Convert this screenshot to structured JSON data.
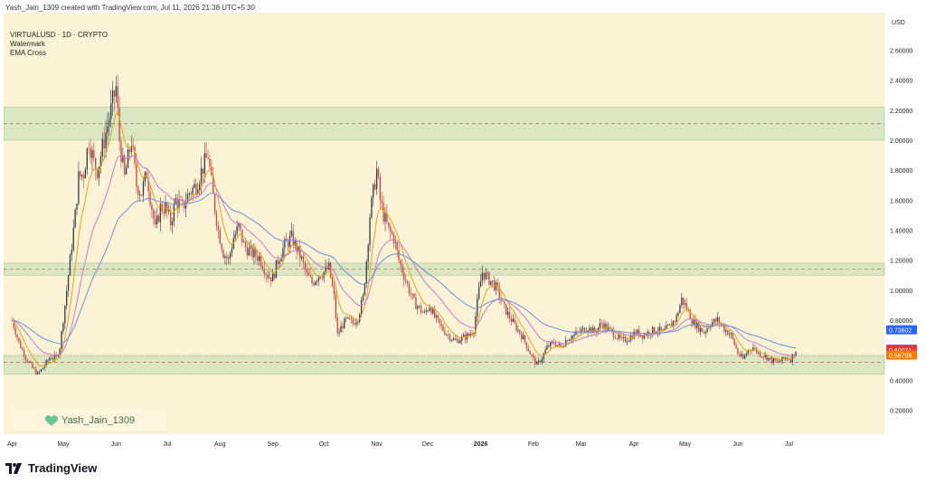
{
  "header": {
    "text": "Yash_Jain_1309 created with TradingView.com, Jul 11, 2026 21:38 UTC+5:30"
  },
  "legend": {
    "symbol": "VIRTUALUSD · 1D · CRYPTO",
    "indicator1": "Watermark",
    "indicator2": "EMA Cross"
  },
  "watermark": {
    "text": "Yash_Jain_1309",
    "icon": "heart-icon",
    "icon_color": "#6cc394"
  },
  "footer": {
    "brand": "TradingView",
    "icon": "tradingview-logo-icon"
  },
  "colors": {
    "background": "#fcf3d7",
    "up_candle": "#2f3a44",
    "down_candle": "#c9433f",
    "ema_fast": "#e6a21e",
    "ema_mid": "#c77bc9",
    "ema_slow": "#6f8fd8",
    "zone_fill": "#d8e6c1",
    "zone_line": "#c15a5a",
    "axis_text": "#222222"
  },
  "chart_data": {
    "type": "candlestick",
    "symbol": "VIRTUALUSD",
    "timeframe": "1D",
    "currency_label": "USD",
    "x_tick_labels": [
      "Apr",
      "May",
      "Jun",
      "Jul",
      "Aug",
      "Sep",
      "Oct",
      "Nov",
      "Dec",
      "2026",
      "Feb",
      "Mar",
      "Apr",
      "May",
      "Jun",
      "Jul"
    ],
    "x_tick_days": [
      0,
      30,
      61,
      91,
      122,
      153,
      183,
      214,
      244,
      275,
      306,
      334,
      365,
      395,
      426,
      456
    ],
    "x_range_days": [
      -5,
      512
    ],
    "y_tick_labels": [
      "0.20000",
      "0.40000",
      "0.60000",
      "0.80000",
      "1.00000",
      "1.20000",
      "1.40000",
      "1.60000",
      "1.80000",
      "2.00000",
      "2.20000",
      "2.40000",
      "2.60000"
    ],
    "y_tick_values": [
      0.2,
      0.4,
      0.6,
      0.8,
      1.0,
      1.2,
      1.4,
      1.6,
      1.8,
      2.0,
      2.2,
      2.4,
      2.6
    ],
    "ylim": [
      0.04,
      2.85
    ],
    "zones": [
      {
        "low": 2.0,
        "high": 2.22,
        "mid": 2.11
      },
      {
        "low": 1.1,
        "high": 1.18,
        "mid": 1.14
      },
      {
        "low": 0.44,
        "high": 0.56,
        "mid": 0.52
      }
    ],
    "last_price_line": 0.57,
    "price_badges": [
      {
        "value": "0.73602",
        "y": 0.736,
        "color": "#2962ff"
      },
      {
        "value": "0.60581",
        "y": 0.606,
        "color": "#9c27b0"
      },
      {
        "value": "0.60071",
        "y": 0.601,
        "color": "#e53935"
      },
      {
        "value": "0.56708",
        "y": 0.567,
        "color": "#f57c00"
      }
    ],
    "price_path": [
      [
        0,
        0.8
      ],
      [
        4,
        0.65
      ],
      [
        8,
        0.55
      ],
      [
        12,
        0.48
      ],
      [
        15,
        0.44
      ],
      [
        18,
        0.48
      ],
      [
        22,
        0.55
      ],
      [
        26,
        0.55
      ],
      [
        28,
        0.62
      ],
      [
        31,
        0.9
      ],
      [
        34,
        1.2
      ],
      [
        37,
        1.5
      ],
      [
        39,
        1.75
      ],
      [
        42,
        1.78
      ],
      [
        45,
        2.0
      ],
      [
        48,
        1.85
      ],
      [
        50,
        1.8
      ],
      [
        52,
        1.9
      ],
      [
        55,
        2.05
      ],
      [
        58,
        2.2
      ],
      [
        61,
        2.35
      ],
      [
        63,
        2.0
      ],
      [
        66,
        1.75
      ],
      [
        70,
        2.0
      ],
      [
        73,
        1.7
      ],
      [
        76,
        1.65
      ],
      [
        79,
        1.78
      ],
      [
        82,
        1.55
      ],
      [
        84,
        1.4
      ],
      [
        87,
        1.55
      ],
      [
        90,
        1.55
      ],
      [
        93,
        1.45
      ],
      [
        96,
        1.6
      ],
      [
        100,
        1.55
      ],
      [
        104,
        1.65
      ],
      [
        108,
        1.7
      ],
      [
        112,
        1.82
      ],
      [
        115,
        1.9
      ],
      [
        118,
        1.62
      ],
      [
        121,
        1.4
      ],
      [
        124,
        1.25
      ],
      [
        127,
        1.2
      ],
      [
        130,
        1.35
      ],
      [
        133,
        1.42
      ],
      [
        136,
        1.3
      ],
      [
        140,
        1.25
      ],
      [
        145,
        1.22
      ],
      [
        150,
        1.1
      ],
      [
        153,
        1.08
      ],
      [
        156,
        1.2
      ],
      [
        160,
        1.3
      ],
      [
        164,
        1.35
      ],
      [
        167,
        1.28
      ],
      [
        170,
        1.2
      ],
      [
        173,
        1.1
      ],
      [
        176,
        1.05
      ],
      [
        180,
        1.1
      ],
      [
        183,
        1.12
      ],
      [
        186,
        1.15
      ],
      [
        189,
        0.95
      ],
      [
        191,
        0.7
      ],
      [
        193,
        0.75
      ],
      [
        196,
        0.8
      ],
      [
        200,
        0.78
      ],
      [
        203,
        0.82
      ],
      [
        206,
        0.95
      ],
      [
        208,
        1.2
      ],
      [
        210,
        1.5
      ],
      [
        212,
        1.65
      ],
      [
        214,
        1.8
      ],
      [
        216,
        1.6
      ],
      [
        218,
        1.5
      ],
      [
        221,
        1.4
      ],
      [
        224,
        1.35
      ],
      [
        227,
        1.2
      ],
      [
        230,
        1.1
      ],
      [
        233,
        1.0
      ],
      [
        236,
        0.92
      ],
      [
        239,
        0.88
      ],
      [
        242,
        0.84
      ],
      [
        245,
        0.9
      ],
      [
        248,
        0.82
      ],
      [
        252,
        0.75
      ],
      [
        256,
        0.7
      ],
      [
        260,
        0.66
      ],
      [
        264,
        0.68
      ],
      [
        268,
        0.7
      ],
      [
        271,
        0.74
      ],
      [
        274,
        1.0
      ],
      [
        276,
        1.12
      ],
      [
        279,
        1.08
      ],
      [
        282,
        1.05
      ],
      [
        285,
        1.0
      ],
      [
        288,
        0.9
      ],
      [
        292,
        0.82
      ],
      [
        296,
        0.75
      ],
      [
        300,
        0.68
      ],
      [
        304,
        0.58
      ],
      [
        308,
        0.5
      ],
      [
        311,
        0.55
      ],
      [
        314,
        0.62
      ],
      [
        318,
        0.65
      ],
      [
        322,
        0.62
      ],
      [
        326,
        0.68
      ],
      [
        330,
        0.7
      ],
      [
        334,
        0.73
      ],
      [
        338,
        0.75
      ],
      [
        342,
        0.72
      ],
      [
        346,
        0.78
      ],
      [
        350,
        0.74
      ],
      [
        354,
        0.7
      ],
      [
        358,
        0.66
      ],
      [
        362,
        0.68
      ],
      [
        366,
        0.72
      ],
      [
        370,
        0.7
      ],
      [
        374,
        0.72
      ],
      [
        378,
        0.74
      ],
      [
        382,
        0.72
      ],
      [
        386,
        0.76
      ],
      [
        390,
        0.82
      ],
      [
        393,
        0.94
      ],
      [
        396,
        0.88
      ],
      [
        399,
        0.8
      ],
      [
        402,
        0.76
      ],
      [
        406,
        0.72
      ],
      [
        410,
        0.78
      ],
      [
        414,
        0.8
      ],
      [
        418,
        0.74
      ],
      [
        422,
        0.7
      ],
      [
        426,
        0.58
      ],
      [
        429,
        0.54
      ],
      [
        432,
        0.6
      ],
      [
        435,
        0.62
      ],
      [
        438,
        0.58
      ],
      [
        442,
        0.56
      ],
      [
        446,
        0.53
      ],
      [
        450,
        0.52
      ],
      [
        454,
        0.55
      ],
      [
        457,
        0.54
      ],
      [
        460,
        0.6
      ]
    ]
  }
}
